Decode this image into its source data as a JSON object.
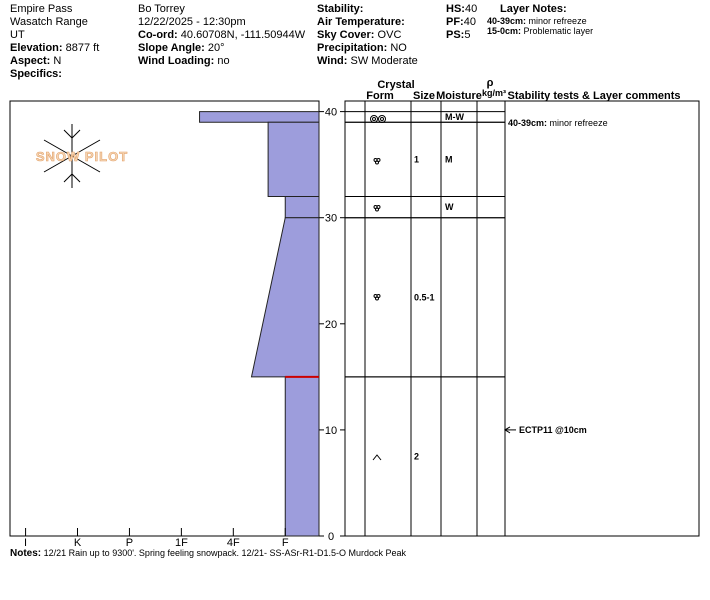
{
  "header": {
    "location": "Empire Pass",
    "range": "Wasatch Range",
    "state": "UT",
    "elevation_label": "Elevation:",
    "elevation": "8877 ft",
    "aspect_label": "Aspect:",
    "aspect": "N",
    "specifics_label": "Specifics:",
    "observer": "Bo Torrey",
    "datetime": "12/22/2025 - 12:30pm",
    "coord_label": "Co-ord:",
    "coord": "40.60708N, -111.50944W",
    "slope_label": "Slope Angle:",
    "slope": "20°",
    "wind_loading_label": "Wind Loading:",
    "wind_loading": "no",
    "stability_label": "Stability:",
    "air_temp_label": "Air Temperature:",
    "sky_label": "Sky Cover:",
    "sky": "OVC",
    "precip_label": "Precipitation:",
    "precip": "NO",
    "wind_label": "Wind:",
    "wind": "SW Moderate",
    "hs_label": "HS:",
    "hs": "40",
    "pf_label": "PF:",
    "pf": "40",
    "ps_label": "PS:",
    "ps": "5",
    "layer_notes_label": "Layer Notes:",
    "layer_notes": [
      {
        "range": "40-39cm:",
        "text": "minor refreeze"
      },
      {
        "range": "15-0cm:",
        "text": "Problematic layer"
      }
    ]
  },
  "logo_text": "SNOW PILOT",
  "profile": {
    "ylim": [
      0,
      41
    ],
    "yticks": [
      0,
      10,
      20,
      30,
      40
    ],
    "xlim": [
      6.3,
      0.35
    ],
    "xticks": [
      {
        "value": 6,
        "label": "I"
      },
      {
        "value": 5,
        "label": "K"
      },
      {
        "value": 4,
        "label": "P"
      },
      {
        "value": 3,
        "label": "1F"
      },
      {
        "value": 2,
        "label": "4F"
      },
      {
        "value": 1,
        "label": "F"
      }
    ],
    "layers": [
      {
        "top": 40,
        "bottom": 39,
        "hardness_top": 2.65,
        "hardness_bottom": 2.65,
        "moisture": "M-W"
      },
      {
        "top": 39,
        "bottom": 32,
        "hardness_top": 1.33,
        "hardness_bottom": 1.33,
        "size": "1",
        "moisture": "M"
      },
      {
        "top": 32,
        "bottom": 30,
        "hardness_top": 1,
        "hardness_bottom": 1,
        "moisture": "W"
      },
      {
        "top": 30,
        "bottom": 15,
        "hardness_top": 1,
        "hardness_bottom": 1.65,
        "size": "0.5-1"
      },
      {
        "top": 15,
        "bottom": 0,
        "hardness_top": 1,
        "hardness_bottom": 1,
        "size": "2"
      }
    ],
    "critical_depth": 15
  },
  "table": {
    "crystal": "Crystal",
    "form": "Form",
    "size": "Size",
    "moisture": "Moisture",
    "density_symbol": "ρ",
    "density_unit": "kg/m³",
    "comments": "Stability tests & Layer comments"
  },
  "layer_comment": {
    "range": "40-39cm:",
    "text": "minor refreeze"
  },
  "stability_test": {
    "label": "ECTP11 @10cm",
    "depth": 10
  },
  "notes": {
    "label": "Notes:",
    "text": "12/21 Rain up to 9300'. Spring feeling snowpack. 12/21- SS-ASr-R1-D1.5-O Murdock Peak"
  }
}
